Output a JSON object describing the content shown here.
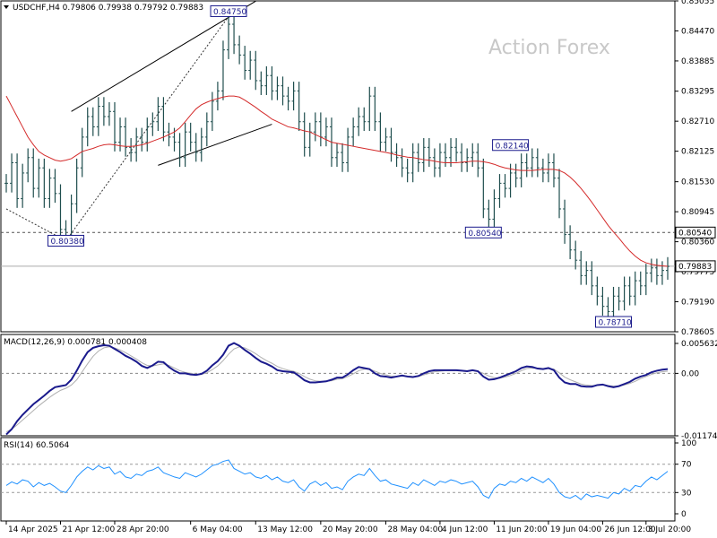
{
  "header": {
    "symbol": "USDCHF,H4",
    "ohlc": "0.79806 0.79938 0.79792 0.79883"
  },
  "watermark": "Action Forex",
  "colors": {
    "bar": "#1f4e4e",
    "ma": "#d42a2a",
    "macd_main": "#1a1a8c",
    "macd_signal": "#b0b0b0",
    "rsi": "#1e90ff",
    "channel": "#000000",
    "label_border": "#1a1a8c"
  },
  "chart_data": [
    {
      "type": "line",
      "panel": "price",
      "ylim": [
        0.78605,
        0.85055
      ],
      "yticks": [
        "0.85055",
        "0.84470",
        "0.83885",
        "0.83295",
        "0.82710",
        "0.82125",
        "0.81530",
        "0.80945",
        "0.80360",
        "0.79775",
        "0.79190",
        "0.78605"
      ],
      "current_price": "0.79883",
      "hlines": [
        {
          "value": 0.8054,
          "label": "0.80540",
          "style": "dashed"
        },
        {
          "value": 0.79883,
          "label": "0.79883",
          "style": "solid"
        }
      ],
      "annotations": [
        {
          "label": "0.84750",
          "x": 41,
          "value": 0.8475
        },
        {
          "label": "0.80380",
          "x": 11,
          "value": 0.8038
        },
        {
          "label": "0.82140",
          "x": 93,
          "value": 0.8214
        },
        {
          "label": "0.80540",
          "x": 88,
          "value": 0.8054
        },
        {
          "label": "0.78710",
          "x": 112,
          "value": 0.7871
        }
      ],
      "channel": [
        {
          "x1": 12,
          "y1": 0.829,
          "x2": 46,
          "y2": 0.8505
        },
        {
          "x1": 28,
          "y1": 0.8185,
          "x2": 49,
          "y2": 0.8265
        }
      ],
      "trendline_dotted": [
        {
          "x1": 0,
          "y1": 0.81,
          "x2": 11,
          "y2": 0.8038
        },
        {
          "x1": 11,
          "y1": 0.8038,
          "x2": 41,
          "y2": 0.8475
        }
      ],
      "series": [
        {
          "kind": "closes",
          "values": [
            0.815,
            0.819,
            0.812,
            0.817,
            0.82,
            0.814,
            0.818,
            0.812,
            0.816,
            0.813,
            0.806,
            0.8045,
            0.811,
            0.818,
            0.824,
            0.828,
            0.826,
            0.83,
            0.828,
            0.829,
            0.823,
            0.826,
            0.822,
            0.821,
            0.824,
            0.823,
            0.826,
            0.827,
            0.83,
            0.825,
            0.824,
            0.823,
            0.82,
            0.825,
            0.823,
            0.821,
            0.824,
            0.827,
            0.831,
            0.833,
            0.841,
            0.846,
            0.842,
            0.84,
            0.837,
            0.839,
            0.835,
            0.834,
            0.836,
            0.833,
            0.834,
            0.832,
            0.831,
            0.833,
            0.827,
            0.822,
            0.825,
            0.827,
            0.824,
            0.826,
            0.82,
            0.821,
            0.819,
            0.824,
            0.826,
            0.828,
            0.827,
            0.832,
            0.827,
            0.823,
            0.824,
            0.821,
            0.82,
            0.818,
            0.817,
            0.821,
            0.819,
            0.822,
            0.82,
            0.818,
            0.821,
            0.82,
            0.822,
            0.821,
            0.819,
            0.82,
            0.821,
            0.818,
            0.81,
            0.808,
            0.812,
            0.815,
            0.814,
            0.817,
            0.816,
            0.819,
            0.818,
            0.82,
            0.818,
            0.817,
            0.819,
            0.816,
            0.81,
            0.805,
            0.802,
            0.8,
            0.797,
            0.798,
            0.795,
            0.793,
            0.791,
            0.79,
            0.793,
            0.792,
            0.795,
            0.793,
            0.796,
            0.795,
            0.7975,
            0.7985,
            0.797,
            0.798,
            0.7988
          ]
        },
        {
          "kind": "ma",
          "values": [
            0.832,
            0.83,
            0.828,
            0.826,
            0.824,
            0.8225,
            0.8212,
            0.8205,
            0.82,
            0.8195,
            0.8193,
            0.8195,
            0.8198,
            0.8205,
            0.8212,
            0.8215,
            0.8218,
            0.8222,
            0.8225,
            0.8226,
            0.8225,
            0.8223,
            0.8222,
            0.8222,
            0.8223,
            0.8225,
            0.8228,
            0.8232,
            0.8236,
            0.824,
            0.8245,
            0.825,
            0.8258,
            0.827,
            0.8283,
            0.8295,
            0.8303,
            0.8308,
            0.8312,
            0.8315,
            0.8318,
            0.832,
            0.832,
            0.8318,
            0.8312,
            0.8305,
            0.8298,
            0.829,
            0.8283,
            0.8275,
            0.827,
            0.8265,
            0.826,
            0.8258,
            0.8255,
            0.8252,
            0.825,
            0.8245,
            0.824,
            0.8235,
            0.823,
            0.8228,
            0.8226,
            0.8224,
            0.8222,
            0.822,
            0.8218,
            0.8216,
            0.8214,
            0.8212,
            0.821,
            0.8208,
            0.8205,
            0.8203,
            0.8201,
            0.82,
            0.8198,
            0.8196,
            0.8195,
            0.8193,
            0.8191,
            0.819,
            0.819,
            0.819,
            0.8191,
            0.8192,
            0.8193,
            0.8193,
            0.8192,
            0.819,
            0.8187,
            0.8183,
            0.818,
            0.8178,
            0.8176,
            0.8175,
            0.8175,
            0.8175,
            0.8176,
            0.8177,
            0.8177,
            0.8177,
            0.8175,
            0.817,
            0.8162,
            0.8152,
            0.814,
            0.8127,
            0.8113,
            0.8098,
            0.8083,
            0.8068,
            0.8055,
            0.8043,
            0.803,
            0.8018,
            0.8008,
            0.8,
            0.7995,
            0.7992,
            0.799,
            0.7989,
            0.7988
          ]
        }
      ]
    },
    {
      "type": "line",
      "panel": "macd",
      "title": "MACD(12,26,9) 0.000781 0.000408",
      "ylim": [
        -0.011742,
        0.005632
      ],
      "yticks": [
        "0.005632",
        "0.00",
        "-0.011742"
      ],
      "zero_label": "0.00",
      "series": [
        {
          "kind": "main",
          "values": [
            -0.0115,
            -0.0105,
            -0.009,
            -0.0078,
            -0.0068,
            -0.0058,
            -0.005,
            -0.0042,
            -0.0033,
            -0.0026,
            -0.0024,
            -0.0022,
            -0.0012,
            0.0005,
            0.0024,
            0.004,
            0.0048,
            0.0051,
            0.0053,
            0.0052,
            0.0046,
            0.004,
            0.0033,
            0.0028,
            0.0022,
            0.0014,
            0.001,
            0.0015,
            0.0022,
            0.0021,
            0.0012,
            0.0005,
            0.0,
            0.0,
            -0.0002,
            -0.0003,
            -0.0001,
            0.0005,
            0.0015,
            0.0023,
            0.0035,
            0.0052,
            0.0057,
            0.0052,
            0.0044,
            0.0037,
            0.0029,
            0.0022,
            0.0018,
            0.0013,
            0.0006,
            0.0004,
            0.0003,
            0.0002,
            -0.0005,
            -0.0013,
            -0.0017,
            -0.0017,
            -0.0016,
            -0.0015,
            -0.0012,
            -0.0008,
            -0.0008,
            -0.0002,
            0.0006,
            0.0012,
            0.001,
            0.0008,
            0.0,
            -0.0005,
            -0.0006,
            -0.0008,
            -0.0006,
            -0.0004,
            -0.0006,
            -0.0007,
            -0.0005,
            0.0,
            0.0004,
            0.0006,
            0.0006,
            0.0006,
            0.0006,
            0.0006,
            0.0005,
            0.0004,
            0.0006,
            0.0004,
            -0.0006,
            -0.0012,
            -0.0011,
            -0.0008,
            -0.0004,
            0.0,
            0.0004,
            0.001,
            0.0013,
            0.0012,
            0.0009,
            0.0008,
            0.001,
            0.0006,
            -0.0008,
            -0.0017,
            -0.002,
            -0.002,
            -0.0024,
            -0.0025,
            -0.0025,
            -0.0022,
            -0.0021,
            -0.0024,
            -0.0026,
            -0.0024,
            -0.002,
            -0.0016,
            -0.001,
            -0.0006,
            -0.0003,
            0.0002,
            0.0005,
            0.0007,
            0.0008
          ]
        },
        {
          "kind": "signal",
          "values": [
            -0.011,
            -0.0105,
            -0.0097,
            -0.0088,
            -0.0079,
            -0.007,
            -0.0061,
            -0.0053,
            -0.0045,
            -0.0038,
            -0.0032,
            -0.0028,
            -0.0022,
            -0.0012,
            0.0003,
            0.0018,
            0.0032,
            0.0042,
            0.0048,
            0.005,
            0.0048,
            0.0044,
            0.0039,
            0.0033,
            0.0027,
            0.002,
            0.0015,
            0.0014,
            0.0016,
            0.0018,
            0.0015,
            0.001,
            0.0005,
            0.0002,
            0.0,
            -0.0002,
            -0.0002,
            0.0001,
            0.0007,
            0.0014,
            0.0024,
            0.0036,
            0.0046,
            0.005,
            0.0048,
            0.0043,
            0.0037,
            0.003,
            0.0024,
            0.0019,
            0.0013,
            0.0009,
            0.0006,
            0.0004,
            0.0,
            -0.0006,
            -0.0011,
            -0.0014,
            -0.0015,
            -0.0015,
            -0.0014,
            -0.0011,
            -0.001,
            -0.0006,
            -0.0001,
            0.0005,
            0.0008,
            0.0008,
            0.0004,
            0.0,
            -0.0003,
            -0.0005,
            -0.0006,
            -0.0005,
            -0.0005,
            -0.0006,
            -0.0006,
            -0.0003,
            0.0,
            0.0003,
            0.0004,
            0.0005,
            0.0005,
            0.0005,
            0.0005,
            0.0005,
            0.0005,
            0.0004,
            0.0,
            -0.0005,
            -0.0008,
            -0.0009,
            -0.0007,
            -0.0004,
            0.0,
            0.0005,
            0.0009,
            0.001,
            0.001,
            0.0009,
            0.0009,
            0.0008,
            0.0001,
            -0.0007,
            -0.0012,
            -0.0016,
            -0.002,
            -0.0022,
            -0.0023,
            -0.0023,
            -0.0022,
            -0.0023,
            -0.0024,
            -0.0024,
            -0.0022,
            -0.0019,
            -0.0015,
            -0.001,
            -0.0006,
            -0.0002,
            0.0001,
            0.0003,
            0.0004
          ]
        }
      ]
    },
    {
      "type": "line",
      "panel": "rsi",
      "title": "RSI(14) 60.5064",
      "ylim": [
        0,
        100
      ],
      "yticks": [
        100,
        70,
        30,
        0
      ],
      "levels": [
        70,
        30
      ],
      "series": [
        {
          "kind": "rsi",
          "values": [
            40,
            45,
            42,
            48,
            46,
            38,
            44,
            40,
            43,
            38,
            32,
            30,
            40,
            52,
            60,
            66,
            62,
            68,
            64,
            66,
            56,
            60,
            52,
            50,
            56,
            54,
            60,
            62,
            66,
            58,
            55,
            52,
            50,
            58,
            55,
            52,
            56,
            62,
            68,
            70,
            74,
            76,
            64,
            60,
            56,
            58,
            52,
            50,
            54,
            48,
            52,
            46,
            44,
            48,
            38,
            32,
            42,
            46,
            40,
            44,
            36,
            38,
            34,
            46,
            52,
            56,
            54,
            64,
            54,
            46,
            48,
            42,
            40,
            38,
            36,
            44,
            40,
            48,
            44,
            40,
            46,
            44,
            48,
            46,
            42,
            44,
            46,
            38,
            26,
            22,
            36,
            42,
            40,
            46,
            44,
            50,
            46,
            52,
            48,
            44,
            50,
            42,
            30,
            24,
            22,
            26,
            20,
            28,
            24,
            26,
            24,
            22,
            30,
            28,
            36,
            32,
            40,
            38,
            46,
            52,
            48,
            54,
            60
          ]
        }
      ]
    },
    {
      "type": "table",
      "panel": "x-axis",
      "xticks": [
        {
          "label": "14 Apr 2025",
          "x": 0
        },
        {
          "label": "21 Apr 12:00",
          "x": 10
        },
        {
          "label": "28 Apr 20:00",
          "x": 20
        },
        {
          "label": "6 May 04:00",
          "x": 34
        },
        {
          "label": "13 May 12:00",
          "x": 46
        },
        {
          "label": "20 May 20:00",
          "x": 58
        },
        {
          "label": "28 May 04:00",
          "x": 70
        },
        {
          "label": "4 Jun 12:00",
          "x": 80
        },
        {
          "label": "11 Jun 20:00",
          "x": 90
        },
        {
          "label": "19 Jun 04:00",
          "x": 100
        },
        {
          "label": "26 Jun 12:00",
          "x": 110
        },
        {
          "label": "3 Jul 20:00",
          "x": 118
        }
      ]
    }
  ]
}
